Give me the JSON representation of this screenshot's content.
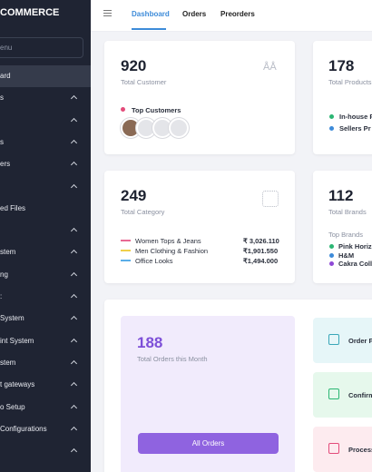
{
  "sidebar": {
    "brand": "COMMERCE",
    "search": "enu",
    "items": [
      "ard",
      "s",
      "s",
      "ers",
      "ed Files",
      "stem",
      "ng",
      ":",
      "System",
      "int System",
      "stem",
      "t gateways",
      "o Setup",
      "Configurations"
    ]
  },
  "tabs": [
    "Dashboard",
    "Orders",
    "Preorders"
  ],
  "customers": {
    "value": "920",
    "label": "Total Customer",
    "top": "Top Customers"
  },
  "products": {
    "value": "178",
    "label": "Total Products",
    "items": [
      "In-house P",
      "Sellers Pr"
    ]
  },
  "category": {
    "value": "249",
    "label": "Total Category",
    "rows": [
      [
        "Women Tops & Jeans",
        "₹ 3,026.110"
      ],
      [
        "Men Clothing & Fashion",
        "₹1,901.550"
      ],
      [
        "Office Looks",
        "₹1,494.000"
      ]
    ]
  },
  "brands": {
    "value": "112",
    "label": "Total Brands",
    "top": "Top Brands",
    "items": [
      "Pink Horize",
      "H&M",
      "Cakra Colle"
    ]
  },
  "orders": {
    "value": "188",
    "label": "Total Orders this Month",
    "button": "All Orders",
    "tiles": [
      "Order P",
      "Confirm",
      "Process"
    ]
  }
}
